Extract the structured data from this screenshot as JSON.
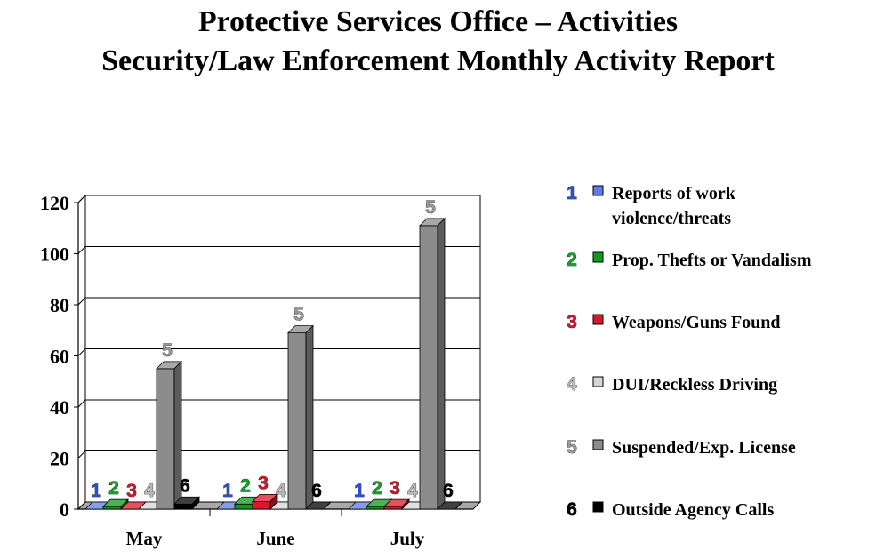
{
  "title_line1": "Protective Services Office – Activities",
  "title_line2": "Security/Law Enforcement Monthly Activity Report",
  "chart_data": {
    "type": "bar",
    "title": "Security/Law Enforcement Monthly Activity Report",
    "categories": [
      "May",
      "June",
      "July"
    ],
    "ylim": [
      0,
      120
    ],
    "yticks": [
      0,
      20,
      40,
      60,
      80,
      100,
      120
    ],
    "grid": true,
    "legend_position": "right",
    "series": [
      {
        "id": "1",
        "name": "Reports of work violence/threats",
        "legend_lines": [
          "Reports of work",
          "violence/threats"
        ],
        "color": "#5b7fe0",
        "label_color": "#2a4fd0",
        "values": [
          0,
          0,
          0
        ]
      },
      {
        "id": "2",
        "name": "Prop. Thefts or Vandalism",
        "legend_lines": [
          "Prop. Thefts or Vandalism"
        ],
        "color": "#0e9a1e",
        "label_color": "#14a02a",
        "values": [
          1,
          2,
          1
        ]
      },
      {
        "id": "3",
        "name": "Weapons/Guns Found",
        "legend_lines": [
          "Weapons/Guns Found"
        ],
        "color": "#e0142a",
        "label_color": "#d0182e",
        "values": [
          0,
          3,
          1
        ]
      },
      {
        "id": "4",
        "name": "DUI/Reckless Driving",
        "legend_lines": [
          "DUI/Reckless Driving"
        ],
        "color": "#d6d6d6",
        "label_color": "#b8b8b8",
        "values": [
          0,
          0,
          0
        ]
      },
      {
        "id": "5",
        "name": "Suspended/Exp. License",
        "legend_lines": [
          "Suspended/Exp. License"
        ],
        "color": "#8c8c8c",
        "label_color": "#9a9a9a",
        "values": [
          55,
          69,
          111
        ]
      },
      {
        "id": "6",
        "name": "Outside Agency Calls",
        "legend_lines": [
          "Outside Agency Calls"
        ],
        "color": "#000000",
        "label_color": "#000000",
        "values": [
          2,
          0,
          0
        ]
      }
    ]
  }
}
